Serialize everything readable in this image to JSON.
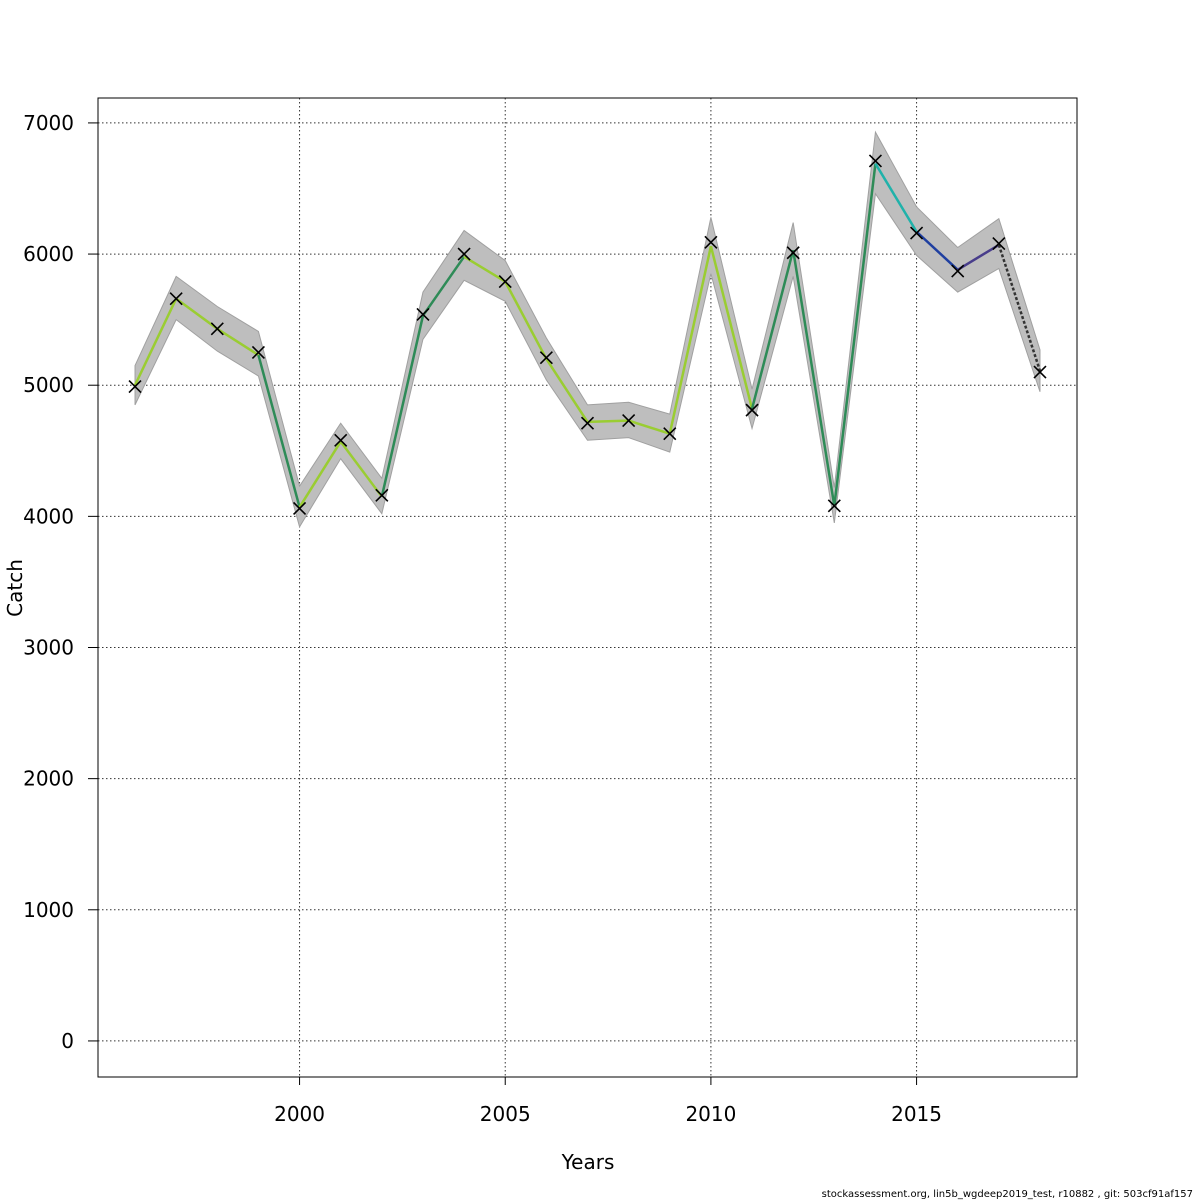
{
  "chart_data": {
    "type": "line",
    "xlabel": "Years",
    "ylabel": "Catch",
    "xlim": [
      1995.1,
      2018.9
    ],
    "ylim": [
      -275,
      7190
    ],
    "x_ticks": [
      2000,
      2005,
      2010,
      2015
    ],
    "y_ticks": [
      0,
      1000,
      2000,
      3000,
      4000,
      5000,
      6000,
      7000
    ],
    "grid": true,
    "grid_x": [
      2000,
      2005,
      2010,
      2015
    ],
    "grid_y": [
      0,
      1000,
      2000,
      3000,
      4000,
      5000,
      6000,
      7000
    ],
    "colors": {
      "band": "#bebebe",
      "observed": "#000000",
      "grid": "#333333",
      "segments": [
        "#9acd32",
        "#9acd32",
        "#9acd32",
        "#2e8b57",
        "#9acd32",
        "#9acd32",
        "#2e8b57",
        "#2e8b57",
        "#9acd32",
        "#9acd32",
        "#9acd32",
        "#9acd32",
        "#9acd32",
        "#9acd32",
        "#9acd32",
        "#2e8b57",
        "#2e8b57",
        "#2e8b57",
        "#20b2aa",
        "#1f3fa0",
        "#483d8b",
        "#333333"
      ]
    },
    "series": [
      {
        "kind": "observed-crosses",
        "x": [
          1996,
          1997,
          1998,
          1999,
          2000,
          2001,
          2002,
          2003,
          2004,
          2005,
          2006,
          2007,
          2008,
          2009,
          2010,
          2011,
          2012,
          2013,
          2014,
          2015,
          2016,
          2017,
          2018
        ],
        "values": [
          4990,
          5660,
          5430,
          5250,
          4060,
          4580,
          4160,
          5540,
          6000,
          5790,
          5210,
          4710,
          4730,
          4630,
          6090,
          4810,
          6010,
          4080,
          6710,
          6160,
          5870,
          6080,
          5100
        ]
      },
      {
        "kind": "estimate-line",
        "x": [
          1996,
          1997,
          1998,
          1999,
          2000,
          2001,
          2002,
          2003,
          2004,
          2005,
          2006,
          2007,
          2008,
          2009,
          2010,
          2011,
          2012,
          2013,
          2014,
          2015,
          2016,
          2017,
          2018
        ],
        "values": [
          5000,
          5660,
          5430,
          5230,
          4070,
          4570,
          4150,
          5530,
          5980,
          5790,
          5200,
          4720,
          4730,
          4630,
          6060,
          4820,
          6030,
          4080,
          6690,
          6170,
          5880,
          6070,
          5110
        ],
        "lower": [
          4850,
          5500,
          5260,
          5070,
          3920,
          4440,
          4020,
          5350,
          5800,
          5640,
          5040,
          4580,
          4600,
          4490,
          5850,
          4670,
          5830,
          3950,
          6460,
          5990,
          5710,
          5890,
          4950
        ],
        "upper": [
          5150,
          5830,
          5600,
          5410,
          4230,
          4710,
          4290,
          5710,
          6180,
          5950,
          5360,
          4850,
          4870,
          4780,
          6280,
          4970,
          6240,
          4220,
          6930,
          6360,
          6050,
          6270,
          5270
        ]
      }
    ]
  },
  "footer": "stockassessment.org, lin5b_wgdeep2019_test, r10882 , git: 503cf91af157"
}
